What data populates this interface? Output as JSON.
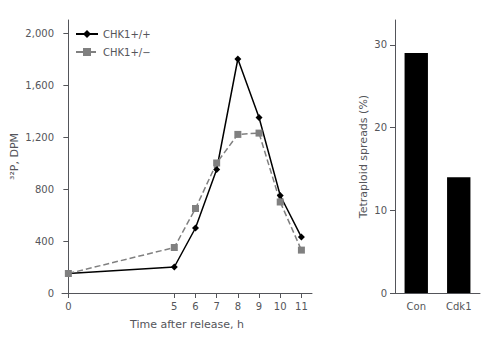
{
  "chart_data": [
    {
      "type": "line",
      "x": [
        0,
        5,
        6,
        7,
        8,
        9,
        10,
        11
      ],
      "xlabel": "Time after release, h",
      "ylabel": "³²P, DPM",
      "series": [
        {
          "name": "CHK1+/+",
          "color": "#000000",
          "marker": "diamond",
          "line_style": "solid",
          "values": [
            150,
            200,
            500,
            950,
            1800,
            1350,
            750,
            430
          ]
        },
        {
          "name": "CHK1+/−",
          "color": "#808080",
          "marker": "square",
          "line_style": "dashed",
          "values": [
            150,
            350,
            650,
            1000,
            1220,
            1230,
            700,
            330
          ]
        }
      ],
      "xlim": [
        -0.3,
        11.5
      ],
      "xticks": [
        0,
        5,
        6,
        7,
        8,
        9,
        10,
        11
      ],
      "ylim": [
        0,
        2100
      ],
      "yticks": [
        0,
        400,
        800,
        1200,
        1600,
        2000
      ],
      "legend": "upper left",
      "grid": false
    },
    {
      "type": "bar",
      "categories": [
        "Con",
        "Cdk1"
      ],
      "values": [
        29,
        14
      ],
      "color": "#000000",
      "ylabel": "Tetraploid spreads (%)",
      "ylim": [
        0,
        33
      ],
      "yticks": [
        0,
        10,
        20,
        30
      ],
      "grid": false
    }
  ]
}
